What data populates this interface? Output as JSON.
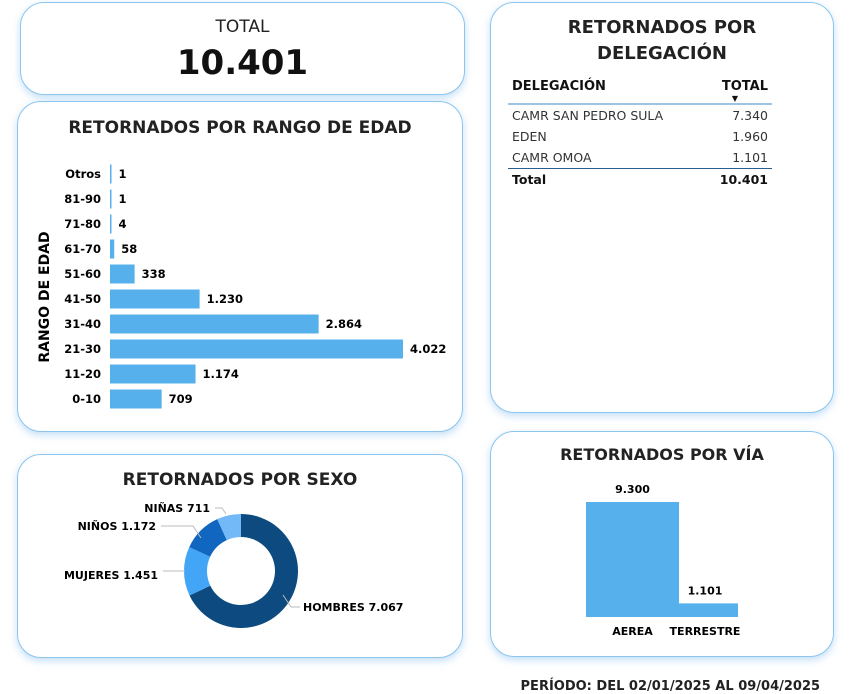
{
  "total_card": {
    "label": "TOTAL",
    "value": "10.401"
  },
  "delegation": {
    "title_line1": "RETORNADOS POR",
    "title_line2": "DELEGACIÓN",
    "col1": "DELEGACIÓN",
    "col2": "TOTAL",
    "rows": [
      {
        "name": "CAMR SAN PEDRO SULA",
        "value": "7.340"
      },
      {
        "name": "EDEN",
        "value": "1.960"
      },
      {
        "name": "CAMR OMOA",
        "value": "1.101"
      }
    ],
    "total_label": "Total",
    "total_value": "10.401"
  },
  "period": {
    "label": "PERÍODO: DEL",
    "from": "02/01/2025",
    "mid": "AL",
    "to": "09/04/2025"
  },
  "chart_data": [
    {
      "type": "bar",
      "orientation": "horizontal",
      "title": "RETORNADOS POR RANGO DE EDAD",
      "ylabel": "RANGO DE EDAD",
      "categories": [
        "Otros",
        "81-90",
        "71-80",
        "61-70",
        "51-60",
        "41-50",
        "31-40",
        "21-30",
        "11-20",
        "0-10"
      ],
      "values": [
        1,
        1,
        4,
        58,
        338,
        1230,
        2864,
        4022,
        1174,
        709
      ],
      "labels": [
        "1",
        "1",
        "4",
        "58",
        "338",
        "1.230",
        "2.864",
        "4.022",
        "1.174",
        "709"
      ],
      "color": "#56b0ec"
    },
    {
      "type": "pie",
      "donut": true,
      "title": "RETORNADOS POR SEXO",
      "slices": [
        {
          "name": "HOMBRES",
          "value": 7067,
          "label": "7.067",
          "color": "#0c4a7f"
        },
        {
          "name": "MUJERES",
          "value": 1451,
          "label": "1.451",
          "color": "#42a5f5"
        },
        {
          "name": "NIÑOS",
          "value": 1172,
          "label": "1.172",
          "color": "#1167bf"
        },
        {
          "name": "NIÑAS",
          "value": 711,
          "label": "711",
          "color": "#74b9f7"
        }
      ]
    },
    {
      "type": "bar",
      "title": "RETORNADOS POR VÍA",
      "categories": [
        "AEREA",
        "TERRESTRE"
      ],
      "values": [
        9300,
        1101
      ],
      "labels": [
        "9.300",
        "1.101"
      ],
      "color": "#56b0ec"
    }
  ]
}
